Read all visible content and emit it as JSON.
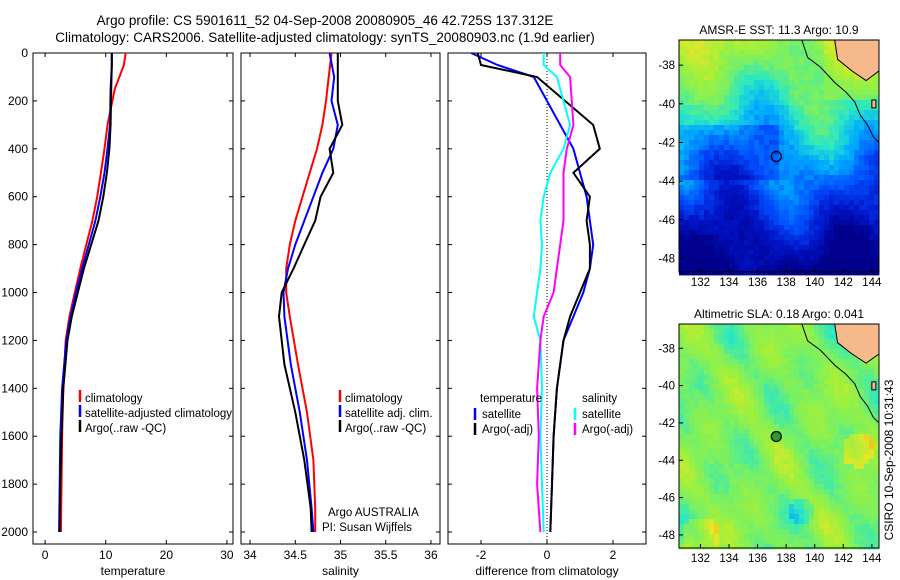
{
  "header": {
    "title_line1": "Argo profile: CS 5901611_52 04-Sep-2008 20080905_46 42.725S 137.312E",
    "title_line2": "Climatology: CARS2006. Satellite-adjusted climatology: synTS_20080903.nc (1.9d earlier)"
  },
  "side_label": "CSIRO 10-Sep-2008 10:31:43",
  "colors": {
    "climatology": "#ff0000",
    "satellite": "#0000ff",
    "argo": "#000000",
    "salinity_satellite": "#00ffff",
    "salinity_argo": "#ff00ff",
    "land": "#f5b98c"
  },
  "chart_data": [
    {
      "type": "line",
      "panel": "temperature",
      "xlabel": "temperature",
      "xlim": [
        -2,
        31
      ],
      "xticks": [
        0,
        10,
        20,
        30
      ],
      "ylim": [
        2050,
        0
      ],
      "yticks": [
        0,
        200,
        400,
        600,
        800,
        1000,
        1200,
        1400,
        1600,
        1800,
        2000
      ],
      "legend": {
        "placement": "lower-right",
        "entries": [
          "climatology",
          "satellite-adjusted climatology",
          "Argo(..raw -QC)"
        ]
      },
      "series": [
        {
          "name": "climatology",
          "color": "#ff0000",
          "x": [
            13.3,
            13.0,
            11.5,
            10.3,
            9.8,
            9.2,
            8.6,
            7.8,
            6.8,
            5.8,
            4.9,
            4.0,
            3.4,
            3.0,
            2.8,
            2.7,
            2.6
          ],
          "y": [
            0,
            50,
            150,
            300,
            400,
            500,
            600,
            700,
            800,
            900,
            1000,
            1100,
            1200,
            1400,
            1600,
            1800,
            2000
          ]
        },
        {
          "name": "satellite-adjusted climatology",
          "color": "#0000ff",
          "x": [
            11.0,
            11.0,
            10.8,
            10.7,
            10.3,
            9.8,
            9.1,
            8.3,
            7.2,
            6.1,
            5.1,
            4.2,
            3.5,
            2.8,
            2.5,
            2.4,
            2.3
          ],
          "y": [
            0,
            50,
            150,
            300,
            400,
            500,
            600,
            700,
            800,
            900,
            1000,
            1100,
            1200,
            1400,
            1600,
            1800,
            2000
          ]
        },
        {
          "name": "Argo(..raw -QC)",
          "color": "#000000",
          "x": [
            11.0,
            11.0,
            10.9,
            10.8,
            10.6,
            10.2,
            9.6,
            8.8,
            7.6,
            6.4,
            5.4,
            4.4,
            3.7,
            3.0,
            2.7,
            2.5,
            2.4
          ],
          "y": [
            0,
            50,
            150,
            300,
            400,
            500,
            600,
            700,
            800,
            900,
            1000,
            1100,
            1200,
            1400,
            1600,
            1800,
            2000
          ]
        }
      ]
    },
    {
      "type": "line",
      "panel": "salinity",
      "xlabel": "salinity",
      "xlim": [
        33.9,
        36.1
      ],
      "xticks": [
        34,
        34.5,
        35,
        35.5,
        36
      ],
      "xtick_labels": [
        "34",
        "34.5",
        "35",
        "35.5",
        "36"
      ],
      "ylim": [
        2050,
        0
      ],
      "legend": {
        "placement": "lower-right",
        "entries": [
          "climatology",
          "satellite adj. clim.",
          "Argo(..raw -QC)"
        ]
      },
      "annotation": [
        "Argo AUSTRALIA",
        "PI: Susan Wijffels"
      ],
      "series": [
        {
          "name": "climatology",
          "color": "#ff0000",
          "x": [
            34.9,
            34.87,
            34.84,
            34.8,
            34.74,
            34.66,
            34.58,
            34.5,
            34.44,
            34.4,
            34.4,
            34.44,
            34.53,
            34.63,
            34.7,
            34.72,
            34.72
          ],
          "y": [
            0,
            100,
            200,
            300,
            400,
            500,
            600,
            700,
            800,
            900,
            1000,
            1100,
            1300,
            1500,
            1700,
            1900,
            2000
          ]
        },
        {
          "name": "satellite adj. clim.",
          "color": "#0000ff",
          "x": [
            34.88,
            34.93,
            34.9,
            34.97,
            34.92,
            34.8,
            34.7,
            34.6,
            34.5,
            34.42,
            34.37,
            34.38,
            34.45,
            34.55,
            34.63,
            34.68,
            34.7
          ],
          "y": [
            0,
            100,
            200,
            300,
            400,
            500,
            600,
            700,
            800,
            900,
            1000,
            1100,
            1300,
            1500,
            1700,
            1900,
            2000
          ]
        },
        {
          "name": "Argo(..raw -QC)",
          "color": "#000000",
          "x": [
            34.97,
            34.97,
            34.97,
            35.02,
            34.88,
            34.92,
            34.78,
            34.72,
            34.6,
            34.48,
            34.35,
            34.32,
            34.38,
            34.5,
            34.6,
            34.67,
            34.68
          ],
          "y": [
            0,
            100,
            200,
            300,
            400,
            500,
            600,
            700,
            800,
            900,
            1000,
            1100,
            1300,
            1500,
            1700,
            1900,
            2000
          ]
        }
      ]
    },
    {
      "type": "line",
      "panel": "difference",
      "xlabel": "difference from climatology",
      "xlim": [
        -3,
        3
      ],
      "xticks": [
        -2,
        0,
        2
      ],
      "ylim": [
        2050,
        0
      ],
      "legend": {
        "placement": "lower-right",
        "temperature_heading": "temperature",
        "salinity_heading": "salinity",
        "temperature_entries": [
          "satellite",
          "Argo(-adj)"
        ],
        "salinity_entries": [
          "satellite",
          "Argo(-adj)"
        ]
      },
      "series": [
        {
          "name": "temperature satellite",
          "color": "#0000ff",
          "x": [
            -2.3,
            -1.5,
            -0.4,
            0.4,
            0.8,
            1.0,
            1.2,
            1.3,
            1.4,
            1.3,
            1.1,
            0.8,
            0.5,
            0.3,
            0.2,
            0.15,
            0.1
          ],
          "y": [
            0,
            50,
            100,
            300,
            400,
            500,
            600,
            700,
            800,
            900,
            1000,
            1100,
            1200,
            1400,
            1600,
            1800,
            2000
          ]
        },
        {
          "name": "temperature Argo(-adj)",
          "color": "#000000",
          "x": [
            -2.1,
            -2.0,
            -0.3,
            1.4,
            1.6,
            0.8,
            1.3,
            1.2,
            1.3,
            1.3,
            1.0,
            0.7,
            0.5,
            0.3,
            0.2,
            0.15,
            0.1
          ],
          "y": [
            0,
            50,
            100,
            300,
            400,
            500,
            600,
            700,
            800,
            900,
            1000,
            1100,
            1200,
            1400,
            1600,
            1800,
            2000
          ]
        },
        {
          "name": "salinity satellite",
          "color": "#00ffff",
          "x": [
            -0.1,
            -0.1,
            0.3,
            0.7,
            0.5,
            0.1,
            -0.1,
            -0.2,
            -0.15,
            -0.2,
            -0.3,
            -0.4,
            -0.2,
            -0.15,
            -0.2,
            -0.15,
            -0.1
          ],
          "y": [
            0,
            50,
            100,
            300,
            400,
            500,
            600,
            700,
            800,
            900,
            1000,
            1100,
            1200,
            1400,
            1600,
            1800,
            2000
          ]
        },
        {
          "name": "salinity Argo(-adj)",
          "color": "#ff00ff",
          "x": [
            0.4,
            0.4,
            0.7,
            0.8,
            0.6,
            0.5,
            0.5,
            0.5,
            0.4,
            0.3,
            0.2,
            -0.1,
            -0.2,
            -0.3,
            -0.25,
            -0.3,
            -0.2
          ],
          "y": [
            0,
            50,
            100,
            300,
            400,
            500,
            600,
            700,
            800,
            900,
            1000,
            1100,
            1200,
            1400,
            1600,
            1800,
            2000
          ]
        }
      ]
    },
    {
      "type": "heatmap",
      "panel": "sst_map",
      "title": "AMSR-E SST: 11.3 Argo: 10.9",
      "xlim": [
        130.5,
        144.5
      ],
      "ylim": [
        -48.7,
        -36.7
      ],
      "xticks": [
        132,
        134,
        136,
        138,
        140,
        142,
        144
      ],
      "yticks": [
        -38,
        -40,
        -42,
        -44,
        -46,
        -48
      ],
      "marker": {
        "lon": 137.312,
        "lat": -42.725
      }
    },
    {
      "type": "heatmap",
      "panel": "sla_map",
      "title": "Altimetric SLA: 0.18 Argo: 0.041",
      "xlim": [
        130.5,
        144.5
      ],
      "ylim": [
        -48.7,
        -36.7
      ],
      "xticks": [
        132,
        134,
        136,
        138,
        140,
        142,
        144
      ],
      "yticks": [
        -38,
        -40,
        -42,
        -44,
        -46,
        -48
      ],
      "marker": {
        "lon": 137.312,
        "lat": -42.725
      }
    }
  ]
}
